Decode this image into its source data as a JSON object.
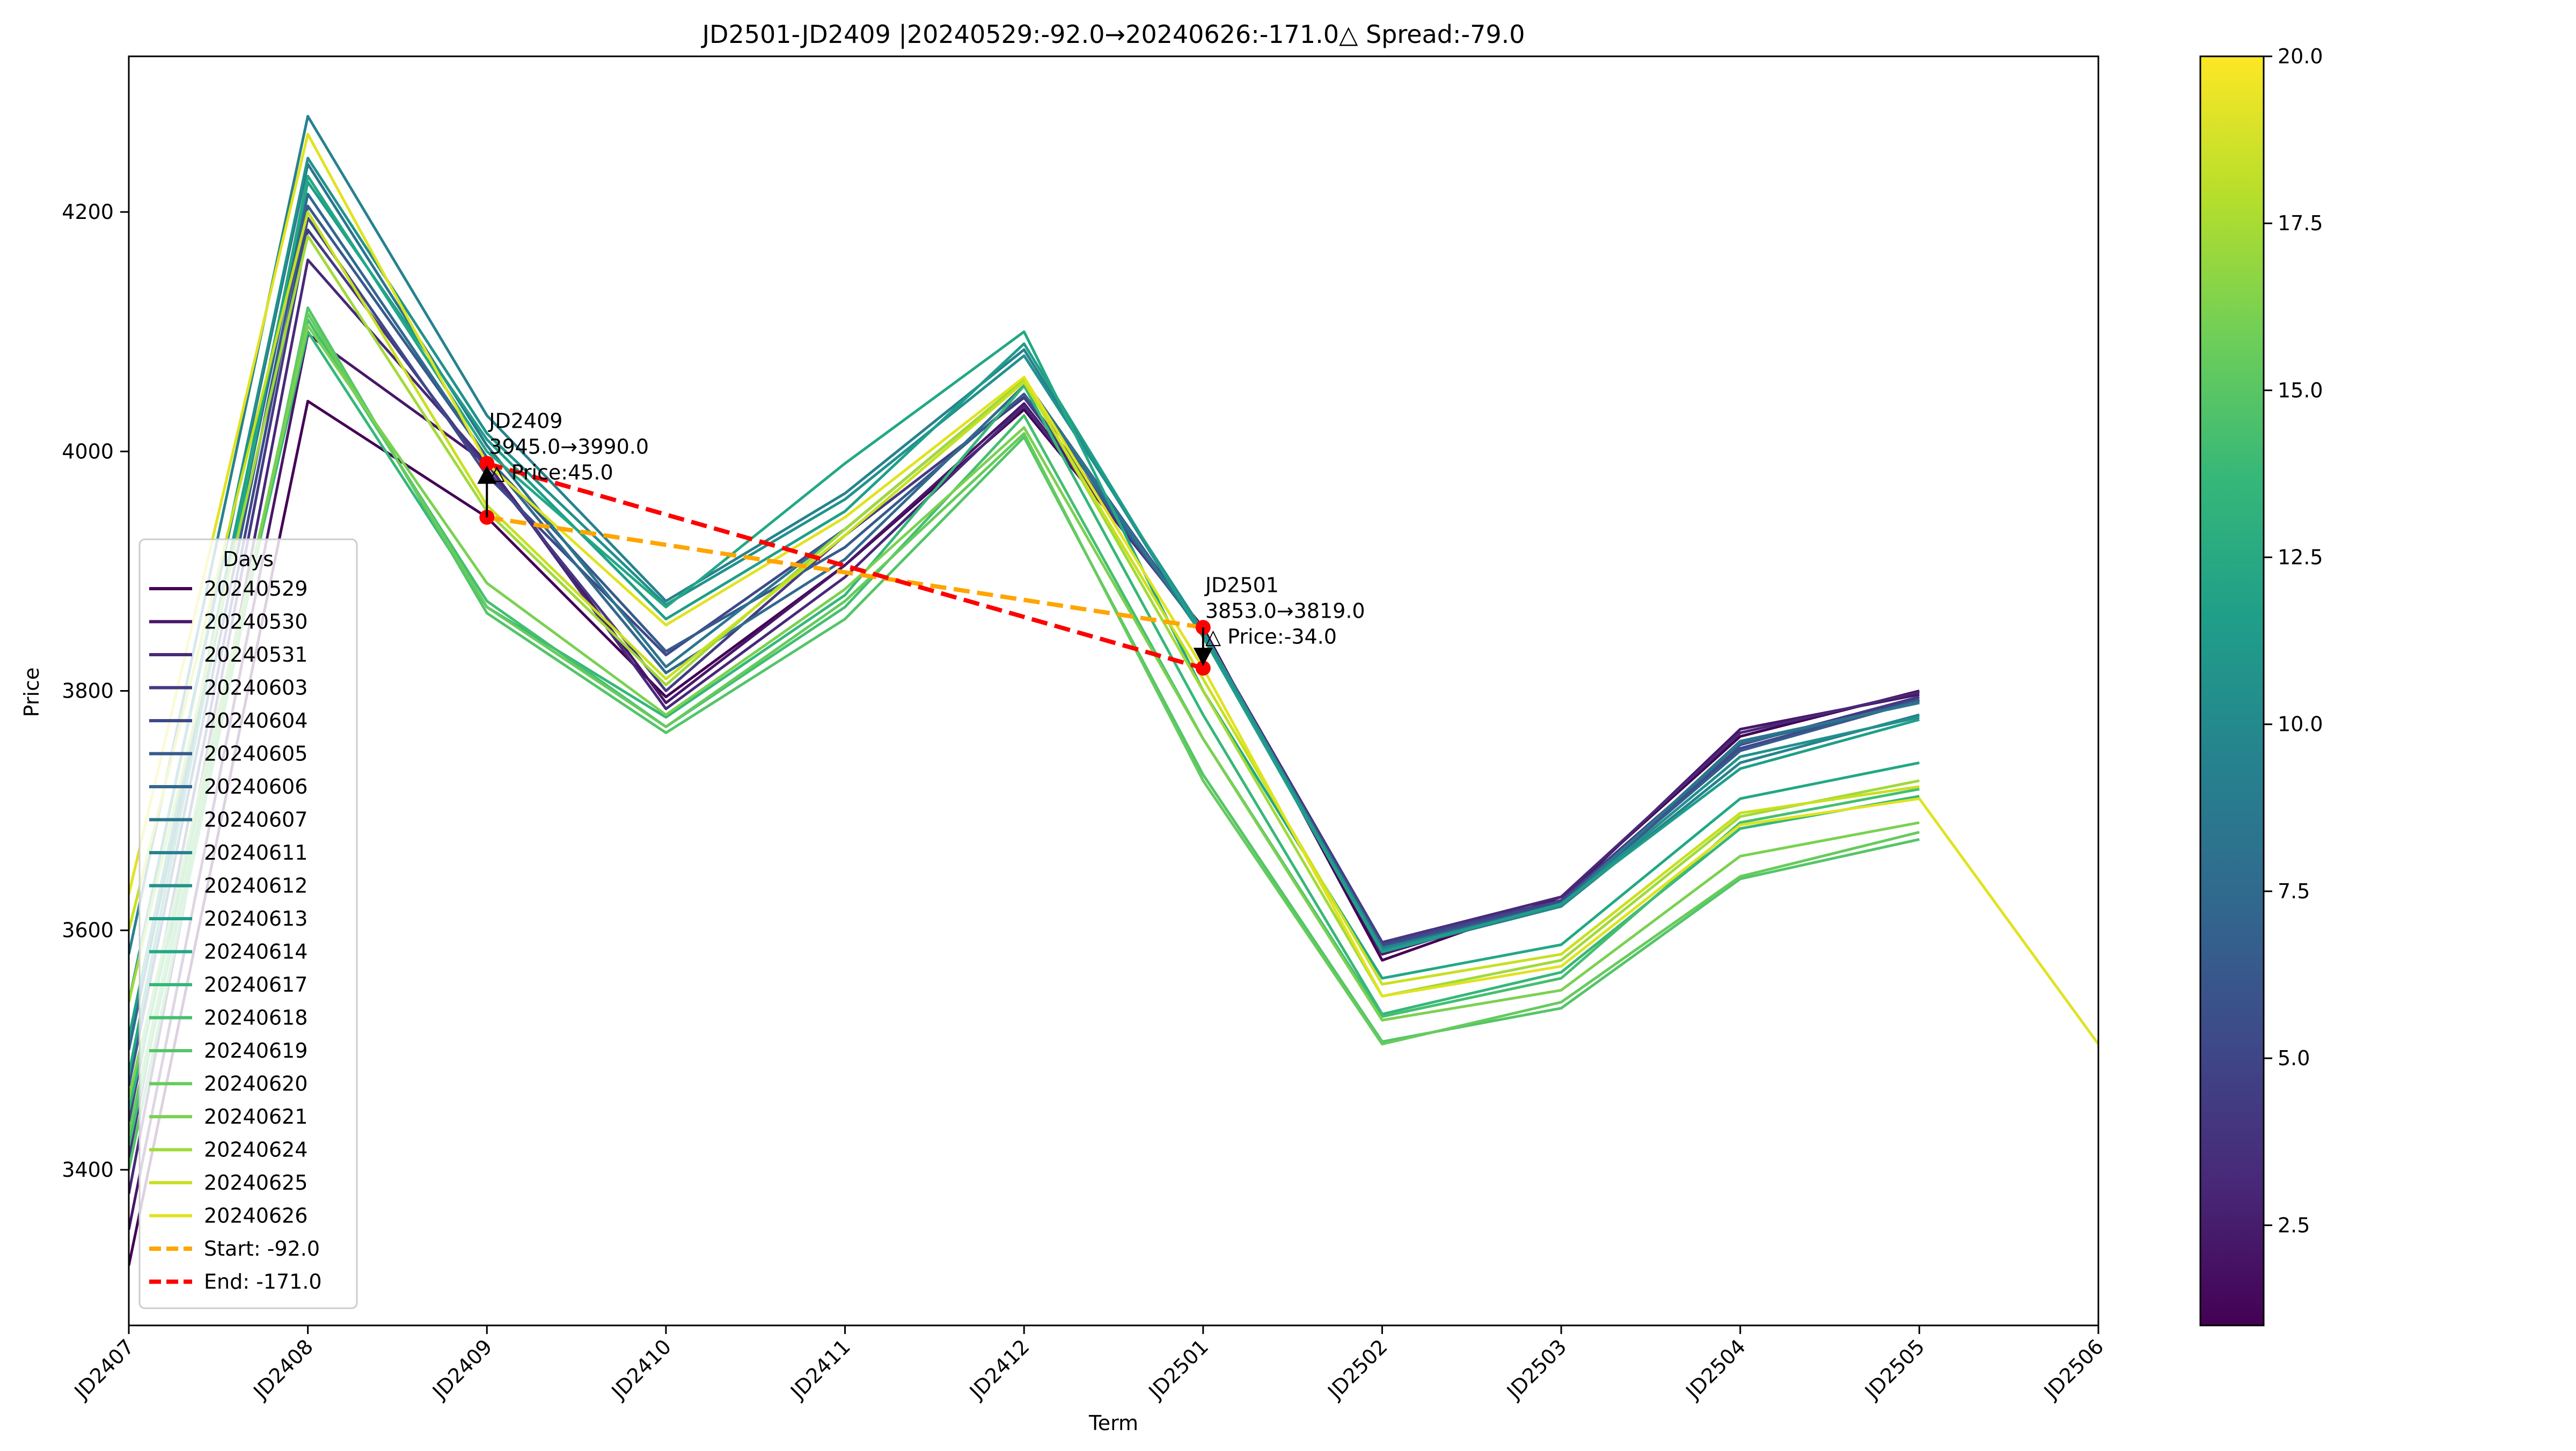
{
  "chart_data": {
    "type": "line",
    "title": "JD2501-JD2409 |20240529:-92.0→20240626:-171.0△ Spread:-79.0",
    "xlabel": "Term",
    "ylabel": "Price",
    "categories": [
      "JD2407",
      "JD2408",
      "JD2409",
      "JD2410",
      "JD2411",
      "JD2412",
      "JD2501",
      "JD2502",
      "JD2503",
      "JD2504",
      "JD2505",
      "JD2506"
    ],
    "ylim": [
      3270,
      4330
    ],
    "yticks": [
      3400,
      3600,
      3800,
      4000,
      4200
    ],
    "grid": false,
    "legend": {
      "title": "Days",
      "placement": "center-left"
    },
    "colormap": "viridis",
    "colorbar": {
      "min": 1,
      "max": 20,
      "ticks": [
        "2.5",
        "5.0",
        "7.5",
        "10.0",
        "12.5",
        "15.0",
        "17.5",
        "20.0"
      ]
    },
    "series": [
      {
        "name": "20240529",
        "color": "#440154",
        "values": [
          3320,
          4042,
          3945,
          3795,
          3905,
          4035,
          3853,
          3575,
          3628,
          3762,
          3800,
          null
        ]
      },
      {
        "name": "20240530",
        "color": "#481668",
        "values": [
          3350,
          4098,
          3990,
          3790,
          3905,
          4040,
          3850,
          3580,
          3625,
          3768,
          3797,
          null
        ]
      },
      {
        "name": "20240531",
        "color": "#482878",
        "values": [
          3380,
          4160,
          3990,
          3785,
          3895,
          4038,
          3850,
          3590,
          3628,
          3765,
          3799,
          null
        ]
      },
      {
        "name": "20240603",
        "color": "#443983",
        "values": [
          3410,
          4185,
          3985,
          3800,
          3930,
          4045,
          3848,
          3590,
          3625,
          3755,
          3795,
          null
        ]
      },
      {
        "name": "20240604",
        "color": "#3e4989",
        "values": [
          3440,
          4195,
          3980,
          3830,
          3935,
          4060,
          3848,
          3588,
          3624,
          3752,
          3793,
          null
        ]
      },
      {
        "name": "20240605",
        "color": "#375a8c",
        "values": [
          3470,
          4205,
          3995,
          3833,
          3920,
          4048,
          3848,
          3586,
          3622,
          3750,
          3792,
          null
        ]
      },
      {
        "name": "20240606",
        "color": "#31688e",
        "values": [
          3500,
          4215,
          3995,
          3815,
          3910,
          4055,
          3847,
          3584,
          3622,
          3756,
          3791,
          null
        ]
      },
      {
        "name": "20240607",
        "color": "#2b758e",
        "values": [
          3540,
          4240,
          4005,
          3820,
          3935,
          4060,
          3846,
          3582,
          3620,
          3758,
          3790,
          null
        ]
      },
      {
        "name": "20240611",
        "color": "#26828e",
        "values": [
          3580,
          4280,
          4030,
          3875,
          3965,
          4085,
          3845,
          3585,
          3620,
          3740,
          3780,
          null
        ]
      },
      {
        "name": "20240612",
        "color": "#21918c",
        "values": [
          3540,
          4245,
          4015,
          3872,
          3960,
          4080,
          3850,
          3583,
          3621,
          3745,
          3778,
          null
        ]
      },
      {
        "name": "20240613",
        "color": "#1f9e89",
        "values": [
          3510,
          4225,
          4010,
          3860,
          3950,
          4090,
          3845,
          3582,
          3622,
          3735,
          3776,
          null
        ]
      },
      {
        "name": "20240614",
        "color": "#22a884",
        "values": [
          3480,
          4230,
          4000,
          3870,
          3990,
          4100,
          3800,
          3560,
          3588,
          3710,
          3740,
          null
        ]
      },
      {
        "name": "20240617",
        "color": "#35b779",
        "values": [
          3450,
          4100,
          3870,
          3778,
          3880,
          4055,
          3780,
          3530,
          3565,
          3685,
          3712,
          null
        ]
      },
      {
        "name": "20240618",
        "color": "#44bf70",
        "values": [
          3420,
          4110,
          3875,
          3770,
          3870,
          4030,
          3760,
          3528,
          3560,
          3690,
          3718,
          null
        ]
      },
      {
        "name": "20240619",
        "color": "#54c568",
        "values": [
          3400,
          4120,
          3865,
          3765,
          3860,
          4012,
          3730,
          3507,
          3535,
          3643,
          3676,
          null
        ]
      },
      {
        "name": "20240620",
        "color": "#66cb5d",
        "values": [
          3430,
          4115,
          3870,
          3770,
          3875,
          4015,
          3725,
          3505,
          3540,
          3645,
          3682,
          null
        ]
      },
      {
        "name": "20240621",
        "color": "#7ad151",
        "values": [
          3460,
          4105,
          3890,
          3780,
          3885,
          4020,
          3760,
          3525,
          3550,
          3662,
          3690,
          null
        ]
      },
      {
        "name": "20240624",
        "color": "#a0da39",
        "values": [
          3540,
          4180,
          3950,
          3805,
          3935,
          4060,
          3800,
          3545,
          3575,
          3695,
          3725,
          null
        ]
      },
      {
        "name": "20240625",
        "color": "#c8e020",
        "values": [
          3600,
          4200,
          3955,
          3810,
          3930,
          4058,
          3810,
          3555,
          3580,
          3698,
          3720,
          null
        ]
      },
      {
        "name": "20240626",
        "color": "#e0e320",
        "values": [
          3630,
          4265,
          3990,
          3855,
          3945,
          4062,
          3819,
          3545,
          3570,
          3688,
          3710,
          3505
        ]
      }
    ],
    "spread_lines": [
      {
        "name": "Start: -92.0",
        "color": "#ffa500",
        "points": [
          [
            "JD2409",
            3945.0
          ],
          [
            "JD2501",
            3853.0
          ]
        ]
      },
      {
        "name": "End: -171.0",
        "color": "#ff0000",
        "points": [
          [
            "JD2409",
            3990.0
          ],
          [
            "JD2501",
            3819.0
          ]
        ]
      }
    ],
    "annotations": [
      {
        "term": "JD2409",
        "lines": [
          "JD2409",
          "3945.0→3990.0",
          "△ Price:45.0"
        ],
        "start": 3945.0,
        "end": 3990.0
      },
      {
        "term": "JD2501",
        "lines": [
          "JD2501",
          "3853.0→3819.0",
          "△ Price:-34.0"
        ],
        "start": 3853.0,
        "end": 3819.0
      }
    ]
  }
}
